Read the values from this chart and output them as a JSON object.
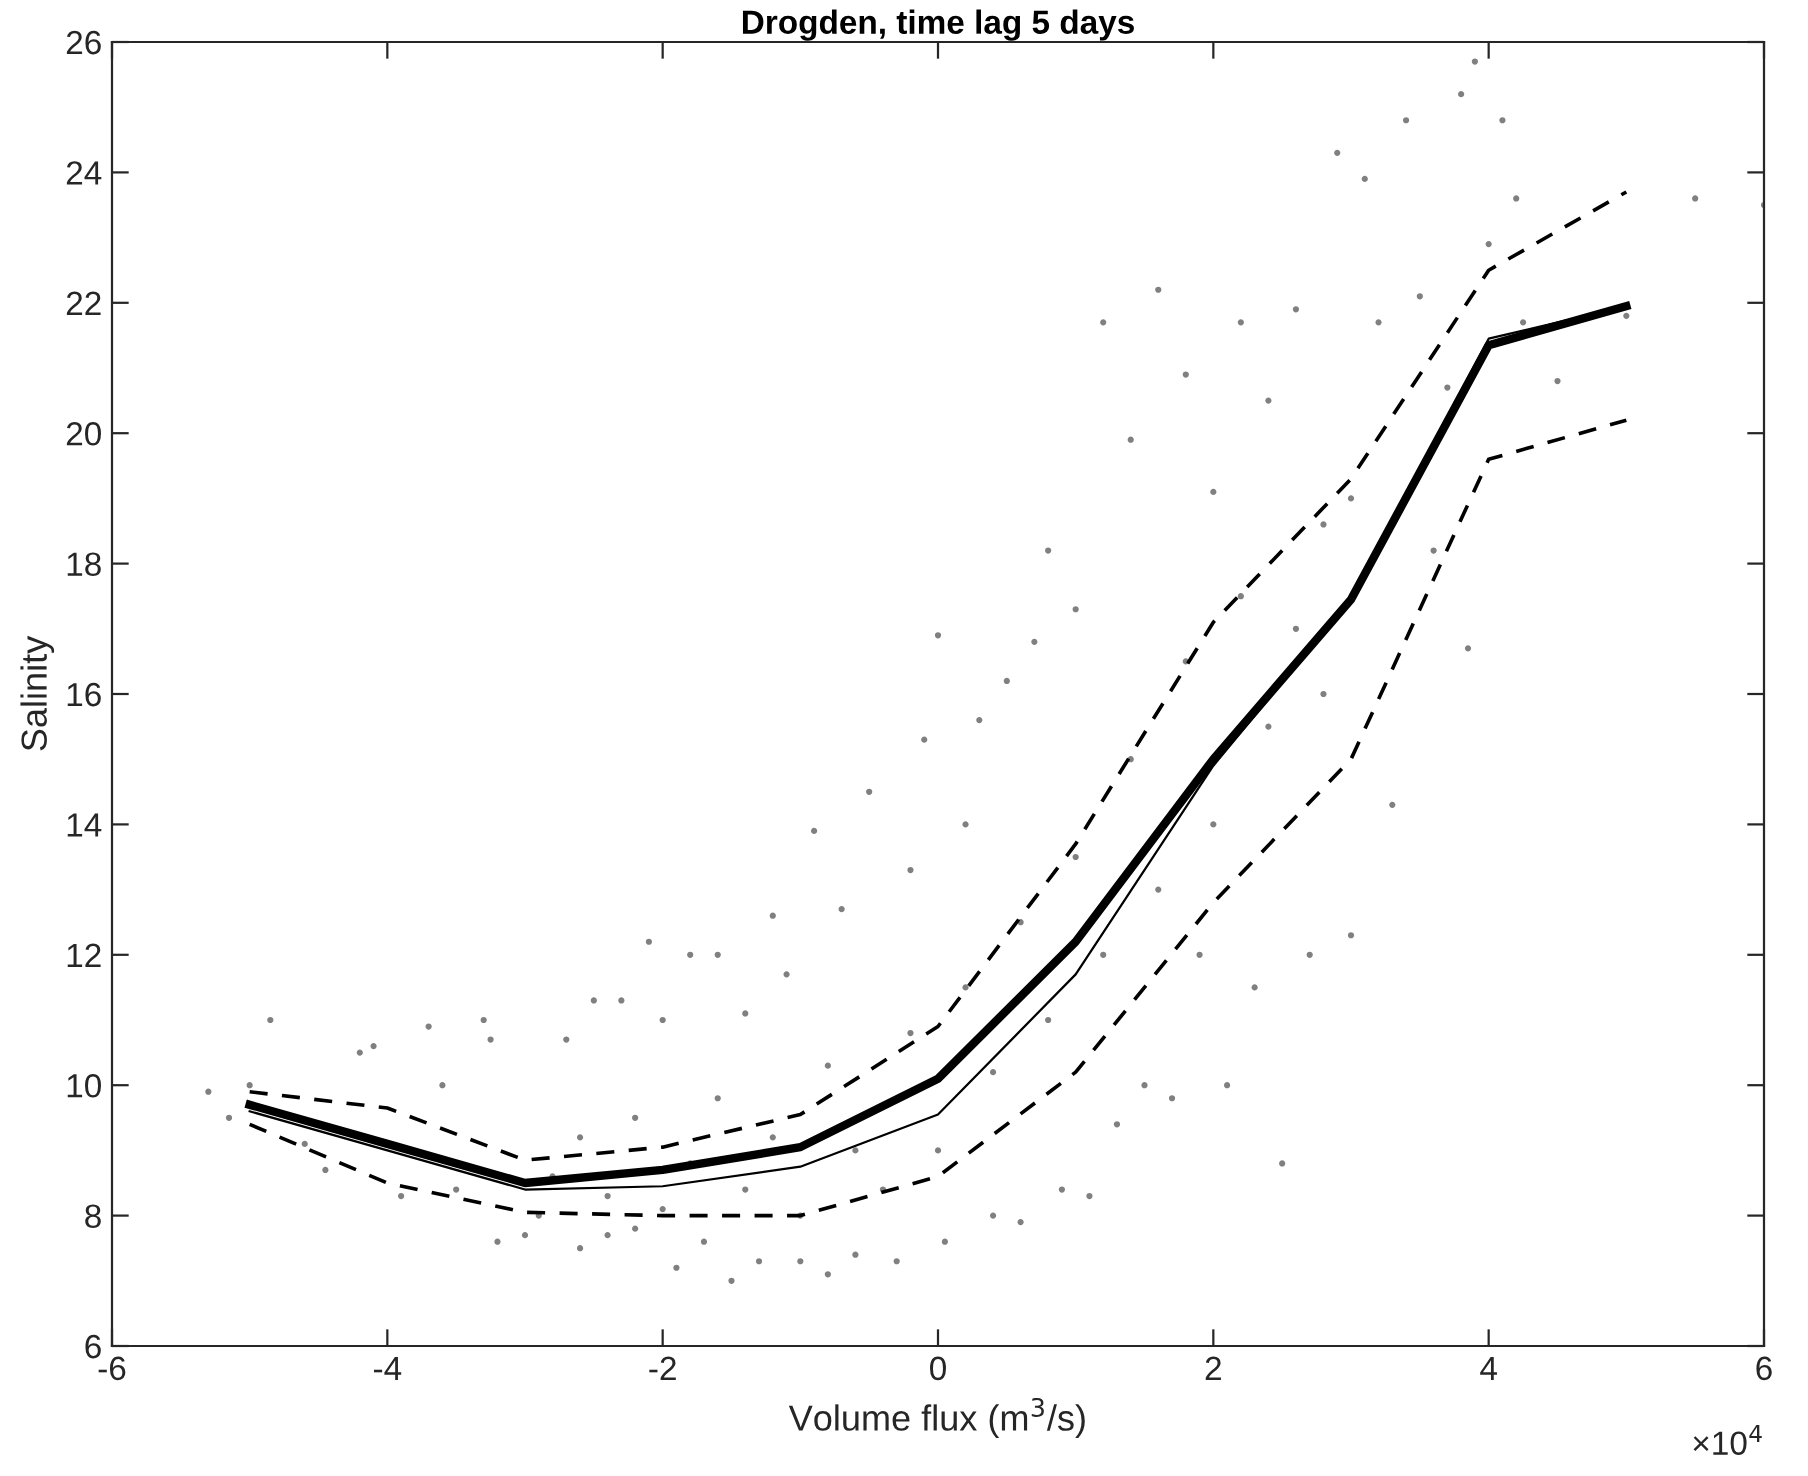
{
  "chart_data": {
    "type": "scatter",
    "title": "Drogden, time lag 5 days",
    "xlabel": "Volume flux (m$^{3}$/s)",
    "ylabel": "Salinity",
    "annotations": [
      "×10$^{4}$"
    ],
    "xlim": [
      -6,
      6
    ],
    "xticks": [
      -6,
      -4,
      -2,
      0,
      2,
      4,
      6
    ],
    "ylim": [
      6,
      26
    ],
    "yticks": [
      6,
      8,
      10,
      12,
      14,
      16,
      18,
      20,
      22,
      24,
      26
    ],
    "grid": false,
    "legend": false,
    "series": [
      {
        "color": "#808080",
        "marker": "circle",
        "x": [
          -5.3,
          -5.15,
          -5.0,
          -4.85,
          -4.6,
          -4.45,
          -4.2,
          -4.1,
          -3.9,
          -3.7,
          -3.6,
          -3.5,
          -3.3,
          -3.25,
          -3.2,
          -3.0,
          -2.9,
          -2.7,
          -2.6,
          -2.5,
          -2.4,
          -2.3,
          -2.2,
          -2.1,
          -2.0,
          -1.9,
          -1.8,
          -1.7,
          -1.6,
          -1.5,
          -1.4,
          -1.3,
          -1.2,
          -1.1,
          -1.0,
          -0.9,
          -0.8,
          -0.7,
          -0.6,
          -0.5,
          -0.3,
          -0.2,
          -0.1,
          0.0,
          0.05,
          0.2,
          0.3,
          0.4,
          0.5,
          0.6,
          0.7,
          0.8,
          0.9,
          1.0,
          1.1,
          1.2,
          1.3,
          1.4,
          1.5,
          1.6,
          1.7,
          1.8,
          1.9,
          2.0,
          2.1,
          2.2,
          2.3,
          2.4,
          2.5,
          2.6,
          2.7,
          2.8,
          2.9,
          3.0,
          3.1,
          3.2,
          3.3,
          3.4,
          3.5,
          3.6,
          3.7,
          3.8,
          3.85,
          3.9,
          4.0,
          4.1,
          4.2,
          4.25,
          4.5,
          5.0,
          5.5,
          6.0,
          -2.8,
          -2.6,
          -2.4,
          -2.2,
          -2.0,
          -1.8,
          -1.6,
          -1.4,
          -1.2,
          -1.0,
          -0.8,
          -0.6,
          -0.4,
          -0.2,
          0.0,
          0.2,
          0.4,
          0.6,
          0.8,
          1.0,
          1.2,
          1.4,
          1.6,
          1.8,
          2.0,
          2.2,
          2.4,
          2.6,
          2.8,
          3.0
        ],
        "values": [
          9.9,
          9.5,
          10.0,
          11.0,
          9.1,
          8.7,
          10.5,
          10.6,
          8.3,
          10.9,
          10.0,
          8.4,
          11.0,
          10.7,
          7.6,
          7.7,
          8.0,
          10.7,
          7.5,
          11.3,
          7.7,
          11.3,
          7.8,
          12.2,
          11.0,
          7.2,
          12.0,
          7.6,
          12.0,
          7.0,
          11.1,
          7.3,
          12.6,
          11.7,
          7.3,
          13.9,
          7.1,
          12.7,
          7.4,
          14.5,
          7.3,
          13.3,
          15.3,
          16.9,
          7.6,
          14.0,
          15.6,
          8.0,
          16.2,
          7.9,
          16.8,
          18.2,
          8.4,
          17.3,
          8.3,
          21.7,
          9.4,
          19.9,
          10.0,
          22.2,
          9.8,
          20.9,
          12.0,
          19.1,
          10.0,
          21.7,
          11.5,
          20.5,
          8.8,
          21.9,
          12.0,
          18.6,
          24.3,
          12.3,
          23.9,
          21.7,
          14.3,
          24.8,
          22.1,
          18.2,
          20.7,
          25.2,
          16.7,
          25.7,
          22.9,
          24.8,
          23.6,
          21.7,
          20.8,
          21.8,
          23.6,
          23.5,
          8.6,
          9.2,
          8.3,
          9.5,
          8.1,
          8.8,
          9.8,
          8.4,
          9.2,
          8.0,
          10.3,
          9.0,
          8.4,
          10.8,
          9.0,
          11.5,
          10.2,
          12.5,
          11.0,
          13.5,
          12.0,
          15.0,
          13.0,
          16.5,
          14.0,
          17.5,
          15.5,
          17.0,
          16.0,
          19.0
        ]
      },
      {
        "type": "line",
        "color": "#000000",
        "line_style": "dashed",
        "marker": "none",
        "x": [
          -5,
          -4,
          -3,
          -2,
          -1,
          0,
          1,
          2,
          3,
          4,
          5
        ],
        "values": [
          9.9,
          9.65,
          8.85,
          9.05,
          9.55,
          10.9,
          13.7,
          17.1,
          19.3,
          22.5,
          23.7
        ]
      },
      {
        "type": "line",
        "color": "#000000",
        "line_style": "dashed",
        "marker": "none",
        "x": [
          -5,
          -4,
          -3,
          -2,
          -1,
          0,
          1,
          2,
          3,
          4,
          5
        ],
        "values": [
          9.4,
          8.5,
          8.05,
          8.0,
          8.0,
          8.6,
          10.2,
          12.8,
          15.0,
          19.6,
          20.2
        ]
      },
      {
        "type": "line",
        "color": "#000000",
        "line_style": "solid",
        "marker": "none",
        "x": [
          -5,
          -4,
          -3,
          -2,
          -1,
          0,
          1,
          2,
          3,
          4,
          5
        ],
        "values": [
          9.6,
          9.0,
          8.4,
          8.45,
          8.75,
          9.55,
          11.7,
          14.9,
          17.45,
          21.45,
          21.95
        ]
      },
      {
        "type": "line",
        "color": "#000000",
        "line_style": "solid",
        "marker": "none",
        "x": [
          -5,
          -4,
          -3,
          -2,
          -1,
          0,
          1,
          2,
          3,
          4,
          5
        ],
        "values": [
          9.7,
          9.1,
          8.5,
          8.7,
          9.05,
          10.1,
          12.2,
          15.0,
          17.45,
          21.35,
          21.95
        ]
      }
    ]
  }
}
